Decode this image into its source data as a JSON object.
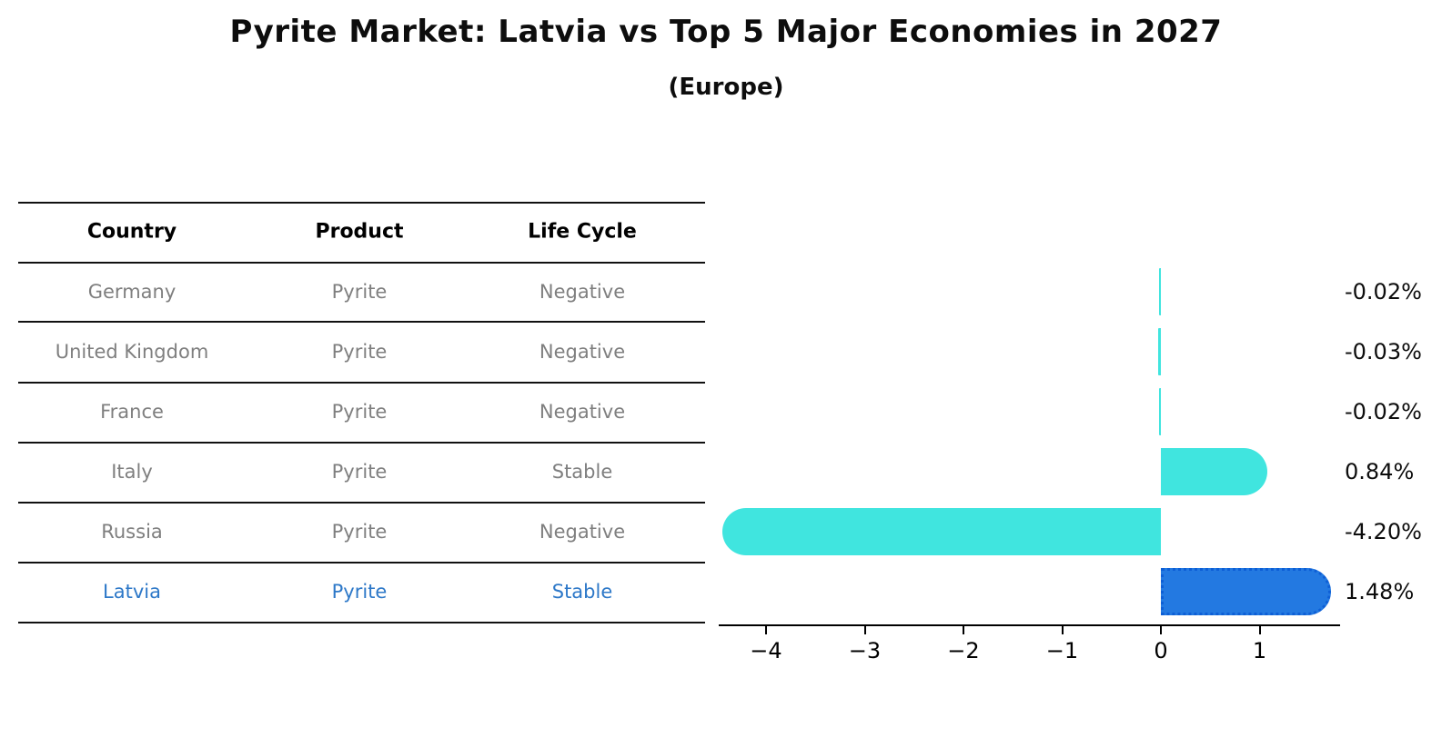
{
  "title": "Pyrite Market: Latvia vs Top 5 Major Economies in 2027",
  "subtitle": "(Europe)",
  "table": {
    "headers": [
      "Country",
      "Product",
      "Life Cycle"
    ],
    "rows": [
      {
        "country": "Germany",
        "product": "Pyrite",
        "life_cycle": "Negative",
        "highlighted": false
      },
      {
        "country": "United Kingdom",
        "product": "Pyrite",
        "life_cycle": "Negative",
        "highlighted": false
      },
      {
        "country": "France",
        "product": "Pyrite",
        "life_cycle": "Negative",
        "highlighted": false
      },
      {
        "country": "Italy",
        "product": "Pyrite",
        "life_cycle": "Stable",
        "highlighted": false
      },
      {
        "country": "Russia",
        "product": "Pyrite",
        "life_cycle": "Negative",
        "highlighted": false
      },
      {
        "country": "Latvia",
        "product": "Pyrite",
        "life_cycle": "Stable",
        "highlighted": true
      }
    ]
  },
  "chart_data": {
    "type": "bar",
    "orientation": "horizontal",
    "categories": [
      "Germany",
      "United Kingdom",
      "France",
      "Italy",
      "Russia",
      "Latvia"
    ],
    "values": [
      -0.02,
      -0.03,
      -0.02,
      0.84,
      -4.2,
      1.48
    ],
    "value_labels": [
      "-0.02%",
      "-0.03%",
      "-0.02%",
      "0.84%",
      "-4.20%",
      "1.48%"
    ],
    "xticks": [
      -4,
      -3,
      -2,
      -1,
      0,
      1
    ],
    "xtick_labels": [
      "−4",
      "−3",
      "−2",
      "−1",
      "0",
      "1"
    ],
    "xlim": [
      -4.5,
      1.85
    ],
    "grid": false,
    "legend": false,
    "highlight_index": 5,
    "bar_color": "#40E5DF",
    "highlight_bar_color": "#2379E1",
    "highlight_border_color": "#0E5FD6",
    "axis_color": "#000000",
    "value_label_color": "#0d0d0d"
  },
  "colors": {
    "header_text": "#000000",
    "row_text": "#7f7f7f",
    "highlight_row_text": "#2d78c8"
  }
}
